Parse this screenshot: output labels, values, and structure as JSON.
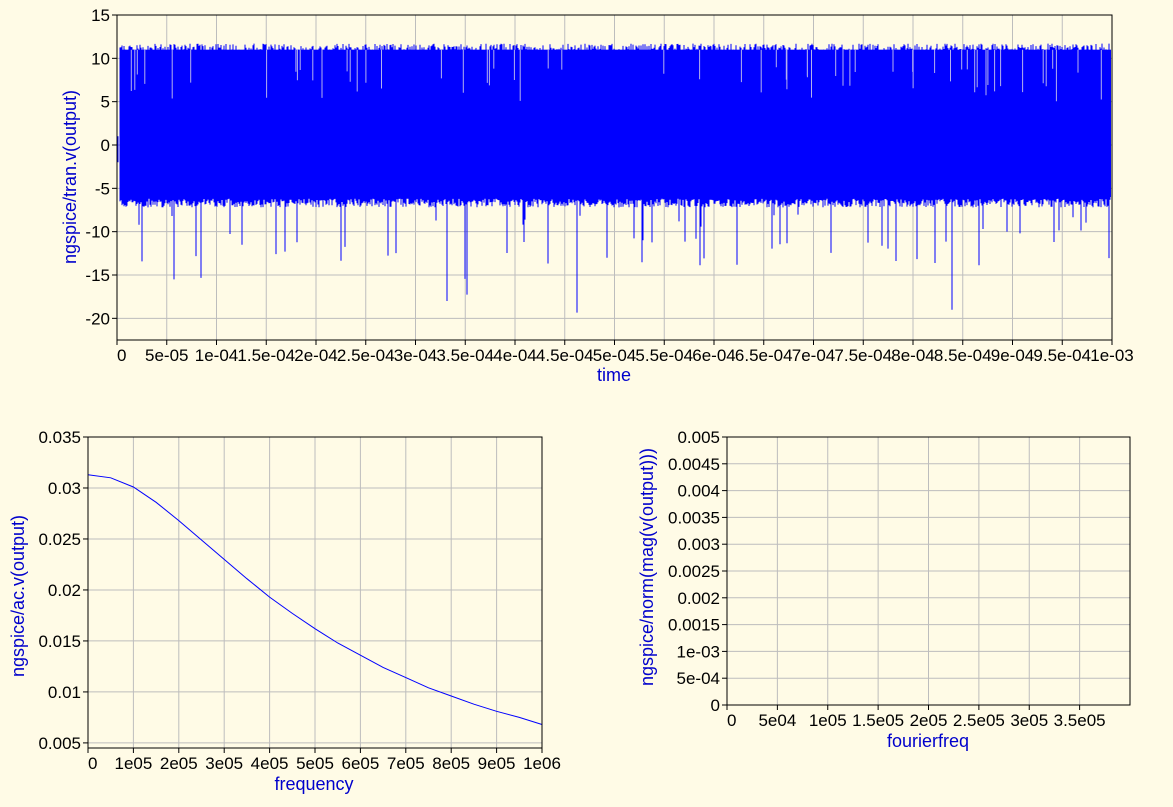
{
  "chart_data": [
    {
      "type": "line",
      "name": "tran",
      "xlabel": "time",
      "ylabel": "ngspice/tran.v(output)",
      "xlim": [
        0,
        0.001
      ],
      "ylim": [
        -22.5,
        15
      ],
      "x_ticks": [
        "0",
        "5e-05",
        "1e-04",
        "1.5e-04",
        "2e-04",
        "2.5e-04",
        "3e-04",
        "3.5e-04",
        "4e-04",
        "4.5e-04",
        "5e-04",
        "5.5e-04",
        "6e-04",
        "6.5e-04",
        "7e-04",
        "7.5e-04",
        "8e-04",
        "8.5e-04",
        "9e-04",
        "9.5e-04",
        "1e-03"
      ],
      "y_ticks": [
        "-20",
        "-15",
        "-10",
        "-5",
        "0",
        "5",
        "10",
        "15"
      ],
      "y_tick_values": [
        -20,
        -15,
        -10,
        -5,
        0,
        5,
        10,
        15
      ],
      "signal": {
        "upper_envelope": 11,
        "lower_envelope": -6,
        "min_spike": -19.5,
        "max_spike": 11.7
      },
      "color": "#0000ff",
      "grid": true
    },
    {
      "type": "line",
      "name": "ac",
      "xlabel": "frequency",
      "ylabel": "ngspice/ac.v(output)",
      "xlim": [
        0,
        1000000
      ],
      "ylim": [
        0.0045,
        0.035
      ],
      "x_ticks": [
        "0",
        "1e05",
        "2e05",
        "3e05",
        "4e05",
        "5e05",
        "6e05",
        "7e05",
        "8e05",
        "9e05",
        "1e06"
      ],
      "y_ticks": [
        "0.005",
        "0.01",
        "0.015",
        "0.02",
        "0.025",
        "0.03",
        "0.035"
      ],
      "y_tick_values": [
        0.005,
        0.01,
        0.015,
        0.02,
        0.025,
        0.03,
        0.035
      ],
      "x": [
        0,
        50000,
        100000,
        150000,
        200000,
        250000,
        300000,
        350000,
        400000,
        450000,
        500000,
        550000,
        600000,
        650000,
        700000,
        750000,
        800000,
        850000,
        900000,
        950000,
        1000000
      ],
      "y": [
        0.0313,
        0.031,
        0.0301,
        0.0286,
        0.0268,
        0.0249,
        0.023,
        0.0211,
        0.0193,
        0.0177,
        0.0162,
        0.0148,
        0.0136,
        0.0124,
        0.0114,
        0.0104,
        0.0096,
        0.0088,
        0.0081,
        0.0075,
        0.0068
      ],
      "color": "#0000ff",
      "grid": true
    },
    {
      "type": "line",
      "name": "fourier",
      "xlabel": "fourierfreq",
      "ylabel": "ngspice/norm(mag(v(output)))",
      "xlim": [
        0,
        400000
      ],
      "ylim": [
        0,
        0.005
      ],
      "x_ticks": [
        "0",
        "5e04",
        "1e05",
        "1.5e05",
        "2e05",
        "2.5e05",
        "3e05",
        "3.5e05"
      ],
      "y_ticks": [
        "0",
        "5e-04",
        "1e-03",
        "0.0015",
        "0.002",
        "0.0025",
        "0.003",
        "0.0035",
        "0.004",
        "0.0045",
        "0.005"
      ],
      "y_tick_values": [
        0,
        0.0005,
        0.001,
        0.0015,
        0.002,
        0.0025,
        0.003,
        0.0035,
        0.004,
        0.0045,
        0.005
      ],
      "color": "#0000ff",
      "grid": true
    }
  ]
}
